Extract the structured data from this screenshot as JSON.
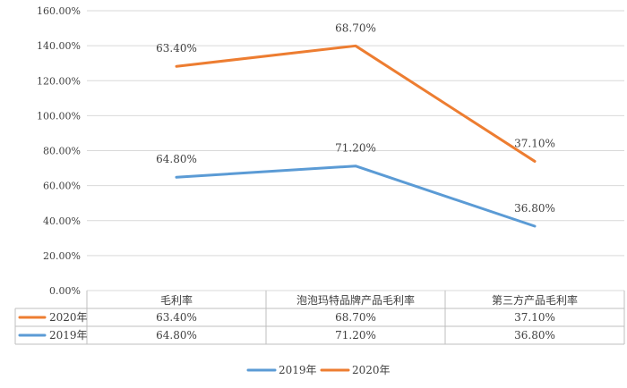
{
  "chart_data": {
    "type": "line",
    "categories": [
      "毛利率",
      "泡泡玛特品牌产品毛利率",
      "第三方产品毛利率"
    ],
    "series": [
      {
        "name": "2019年",
        "color": "#5b9bd5",
        "values": [
          64.8,
          71.2,
          36.8
        ],
        "labels": [
          "64.80%",
          "71.20%",
          "36.80%"
        ]
      },
      {
        "name": "2020年",
        "color": "#ed7d31",
        "values": [
          63.4,
          68.7,
          37.1
        ],
        "labels": [
          "63.40%",
          "68.70%",
          "37.10%"
        ],
        "stacked": true
      }
    ],
    "y_ticks": [
      "0.00%",
      "20.00%",
      "40.00%",
      "60.00%",
      "80.00%",
      "100.00%",
      "120.00%",
      "140.00%",
      "160.00%"
    ],
    "ylim": [
      0,
      160
    ],
    "grid": true,
    "legend_position": "bottom",
    "data_table": {
      "rows": [
        {
          "series": "2020年",
          "color": "#ed7d31",
          "cells": [
            "63.40%",
            "68.70%",
            "37.10%"
          ]
        },
        {
          "series": "2019年",
          "color": "#5b9bd5",
          "cells": [
            "64.80%",
            "71.20%",
            "36.80%"
          ]
        }
      ]
    },
    "legend": [
      {
        "name": "2019年",
        "color": "#5b9bd5"
      },
      {
        "name": "2020年",
        "color": "#ed7d31"
      }
    ]
  }
}
